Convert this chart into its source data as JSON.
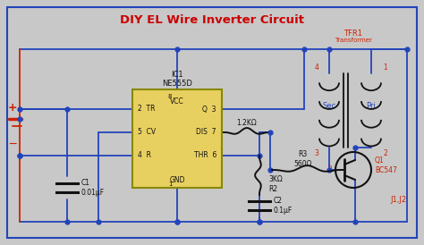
{
  "title": "DIY EL Wire Inverter Circuit",
  "title_color": "#cc0000",
  "bg_color": "#c8c8c8",
  "wire_color": "#2244bb",
  "red_wire_color": "#cc2200",
  "ic_fill": "#e8d060",
  "ic_border": "#888800",
  "ic_label_top": "IC1\nNE555D",
  "transformer_label": "TFR1\nTransformer",
  "sec_label": "Sec",
  "pri_label": "Pri",
  "r1_label": "1.2KΩ",
  "r2_label": "3KΩ\nR2",
  "r3_label": "R3\n560Ω",
  "c1_label": "C1\n0.01μF",
  "c2_label": "C2\n0.1μF",
  "q1_label": "Q1\nBC547",
  "j_label": "J1,J2"
}
